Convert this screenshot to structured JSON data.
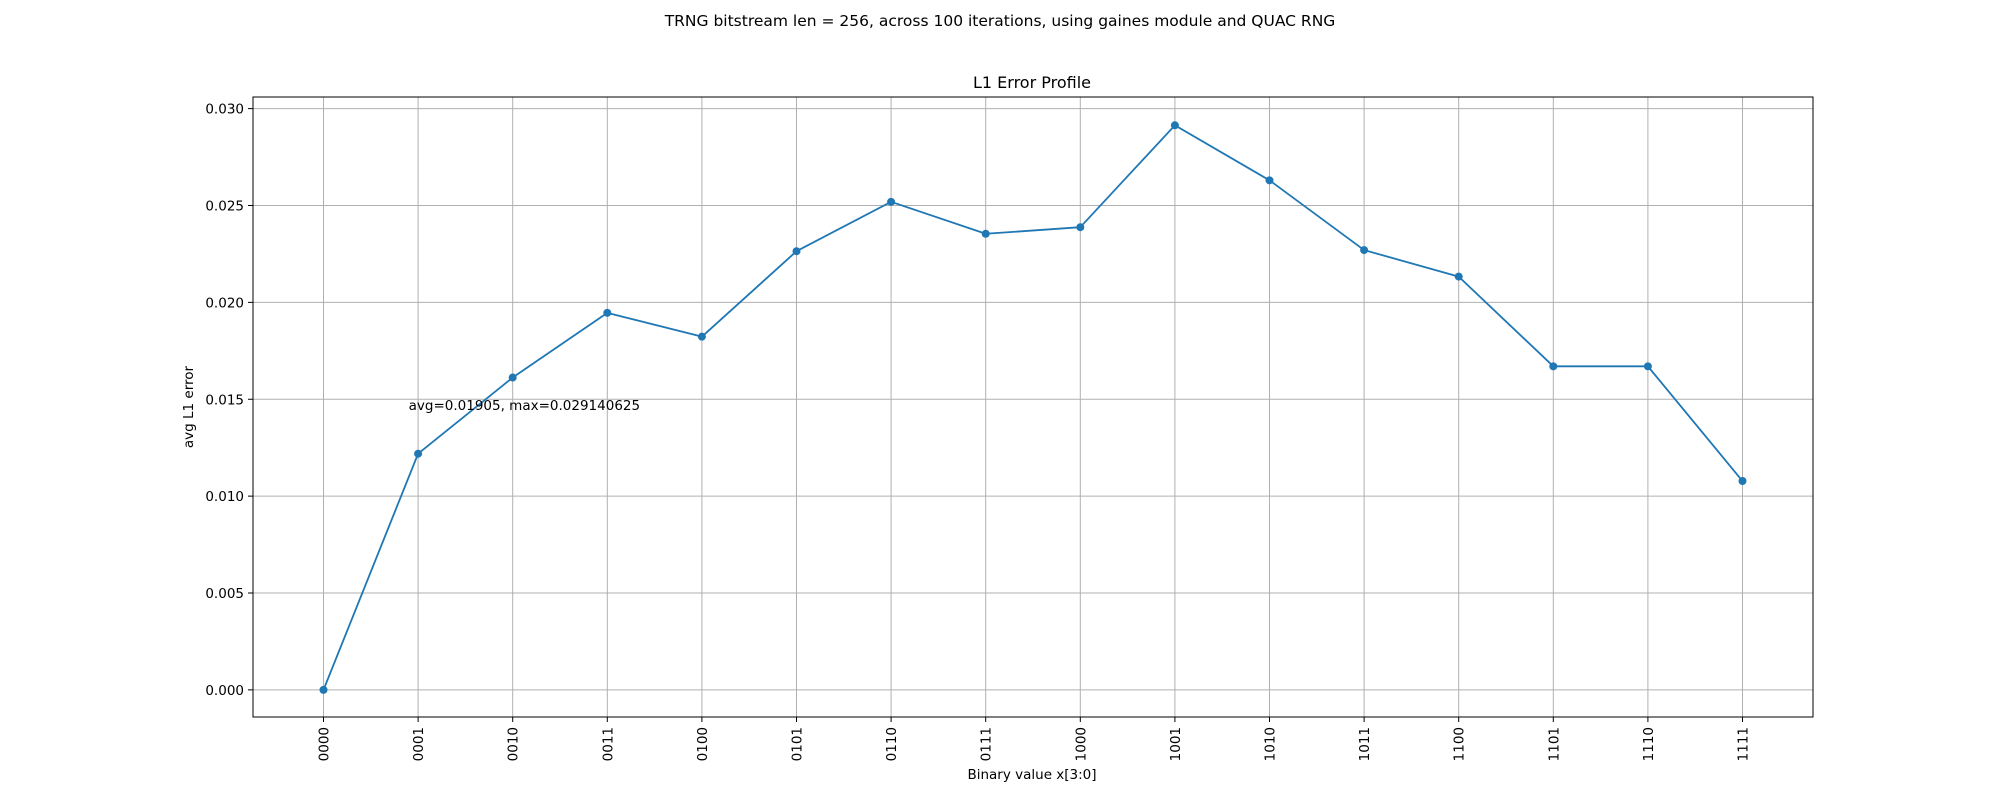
{
  "figure": {
    "suptitle": "TRNG bitstream len = 256, across 100 iterations, using gaines module and QUAC RNG"
  },
  "chart_data": {
    "type": "line",
    "title": "L1 Error Profile",
    "xlabel": "Binary value x[3:0]",
    "ylabel": "avg L1 error",
    "categories": [
      "0000",
      "0001",
      "0010",
      "0011",
      "0100",
      "0101",
      "0110",
      "0111",
      "1000",
      "1001",
      "1010",
      "1011",
      "1100",
      "1101",
      "1110",
      "1111"
    ],
    "series": [
      {
        "values": [
          0.0,
          0.01219,
          0.01612,
          0.01946,
          0.01823,
          0.02264,
          0.02519,
          0.02354,
          0.02388,
          0.02914,
          0.0263,
          0.0227,
          0.02133,
          0.0167,
          0.0167,
          0.01078
        ],
        "color": "#1f77b4",
        "marker": "circle"
      }
    ],
    "ylim": [
      -0.0014,
      0.0306
    ],
    "yticks": [
      "0.000",
      "0.005",
      "0.010",
      "0.015",
      "0.020",
      "0.025",
      "0.030"
    ],
    "grid": true,
    "annotation": {
      "text": "avg=0.01905, max=0.029140625",
      "x": 0.9,
      "y": 0.01445
    }
  }
}
